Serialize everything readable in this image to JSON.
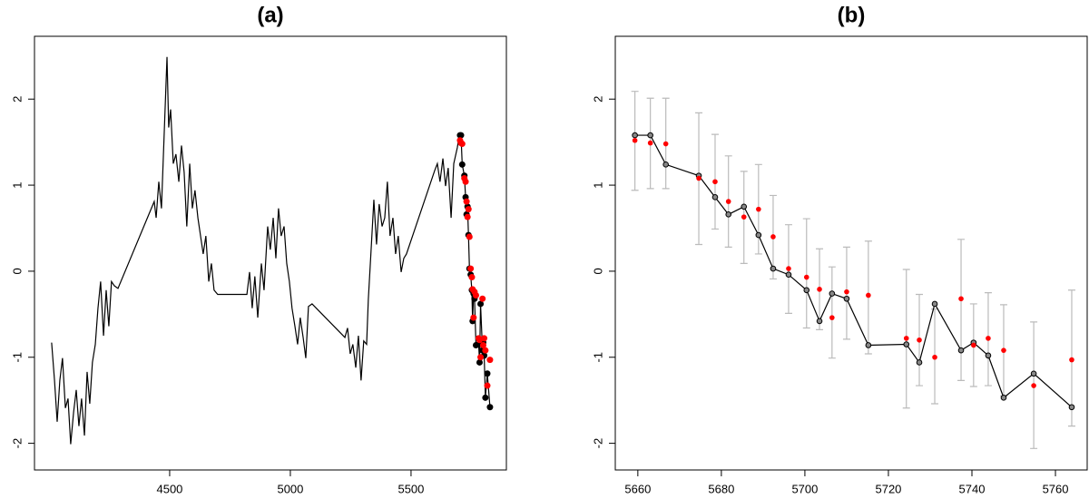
{
  "chart_data": [
    {
      "type": "line",
      "title": "(a)",
      "color": "#000000",
      "predicted_color": "#ff0000",
      "xlim": [
        3940,
        5895
      ],
      "ylim": [
        -2.31,
        2.73
      ],
      "xticks": [
        4500,
        5000,
        5500
      ],
      "yticks": [
        -2,
        -1,
        0,
        1,
        2
      ],
      "x": [
        4011,
        4023,
        4034,
        4045,
        4056,
        4068,
        4079,
        4090,
        4102,
        4113,
        4124,
        4135,
        4147,
        4158,
        4169,
        4180,
        4192,
        4203,
        4214,
        4226,
        4237,
        4248,
        4259,
        4271,
        4286,
        4436,
        4444,
        4455,
        4466,
        4477,
        4489,
        4496,
        4504,
        4515,
        4526,
        4538,
        4549,
        4560,
        4571,
        4583,
        4594,
        4605,
        4617,
        4628,
        4639,
        4650,
        4662,
        4673,
        4684,
        4699,
        4820,
        4831,
        4842,
        4853,
        4865,
        4880,
        4891,
        4906,
        4917,
        4929,
        4940,
        4951,
        4962,
        4974,
        4985,
        4996,
        5007,
        5019,
        5030,
        5041,
        5053,
        5064,
        5075,
        5090,
        5226,
        5237,
        5248,
        5259,
        5271,
        5282,
        5293,
        5304,
        5316,
        5323,
        5334,
        5346,
        5357,
        5368,
        5380,
        5391,
        5402,
        5413,
        5425,
        5436,
        5447,
        5459,
        5470,
        5481,
        5598,
        5609,
        5620,
        5632,
        5643,
        5654,
        5666,
        5677,
        5692,
        5699
      ],
      "values": [
        -0.83,
        -1.27,
        -1.75,
        -1.27,
        -1.01,
        -1.59,
        -1.48,
        -2.01,
        -1.64,
        -1.38,
        -1.8,
        -1.48,
        -1.91,
        -1.17,
        -1.54,
        -1.06,
        -0.85,
        -0.43,
        -0.12,
        -0.75,
        -0.22,
        -0.64,
        -0.12,
        -0.17,
        -0.2,
        0.81,
        0.62,
        1.04,
        0.73,
        1.57,
        2.49,
        1.67,
        1.88,
        1.25,
        1.36,
        1.04,
        1.46,
        1.15,
        0.52,
        1.25,
        0.73,
        0.94,
        0.62,
        0.41,
        0.2,
        0.41,
        -0.12,
        0.09,
        -0.22,
        -0.27,
        -0.27,
        -0.01,
        -0.43,
        -0.06,
        -0.54,
        0.09,
        -0.22,
        0.52,
        0.25,
        0.62,
        0.15,
        0.73,
        0.41,
        0.52,
        0.09,
        -0.12,
        -0.43,
        -0.64,
        -0.85,
        -0.54,
        -0.77,
        -1.01,
        -0.41,
        -0.38,
        -0.77,
        -0.66,
        -0.96,
        -0.85,
        -1.12,
        -0.75,
        -1.27,
        -0.81,
        -0.85,
        -0.33,
        0.22,
        0.83,
        0.31,
        0.78,
        0.52,
        0.62,
        1.04,
        0.41,
        0.62,
        0.2,
        0.41,
        -0.01,
        0.15,
        0.2,
        1.17,
        1.25,
        1.04,
        1.31,
        0.99,
        1.2,
        0.62,
        1.25,
        1.44,
        1.57
      ],
      "observed": {
        "x": [
          5703,
          5707,
          5712,
          5721,
          5726,
          5730,
          5734,
          5738,
          5742,
          5747,
          5752,
          5755,
          5759,
          5763,
          5769,
          5780,
          5784,
          5788,
          5796,
          5799,
          5803,
          5808,
          5816,
          5827
        ],
        "values": [
          1.58,
          1.58,
          1.24,
          1.11,
          0.86,
          0.66,
          0.75,
          0.42,
          0.03,
          -0.04,
          -0.22,
          -0.58,
          -0.26,
          -0.32,
          -0.86,
          -0.85,
          -1.06,
          -0.38,
          -0.92,
          -0.83,
          -0.98,
          -1.47,
          -1.19,
          -1.58
        ]
      },
      "predicted": {
        "values": [
          1.52,
          1.49,
          1.48,
          1.08,
          1.04,
          0.81,
          0.63,
          0.72,
          0.4,
          0.03,
          -0.07,
          -0.21,
          -0.54,
          -0.24,
          -0.28,
          -0.78,
          -0.8,
          -1.0,
          -0.32,
          -0.86,
          -0.78,
          -0.92,
          -1.33,
          -1.03
        ]
      }
    },
    {
      "type": "line",
      "title": "(b)",
      "color": "#000000",
      "predicted_color": "#ff0000",
      "error_color": "#bbbbbb",
      "xlim": [
        5654.6,
        5767.6
      ],
      "ylim": [
        -2.31,
        2.73
      ],
      "xticks": [
        5660,
        5680,
        5700,
        5720,
        5740,
        5760
      ],
      "yticks": [
        -2,
        -1,
        0,
        1,
        2
      ],
      "observed": {
        "x": [
          5659.3,
          5663,
          5666.7,
          5674.6,
          5678.5,
          5681.7,
          5685.4,
          5688.9,
          5692.4,
          5696.1,
          5700.4,
          5703.5,
          5706.5,
          5710,
          5715.2,
          5724.3,
          5727.4,
          5731.1,
          5737.4,
          5740.4,
          5743.9,
          5747.6,
          5754.8,
          5763.9
        ],
        "values": [
          1.58,
          1.58,
          1.24,
          1.11,
          0.86,
          0.66,
          0.75,
          0.42,
          0.03,
          -0.04,
          -0.22,
          -0.58,
          -0.26,
          -0.32,
          -0.86,
          -0.85,
          -1.06,
          -0.38,
          -0.92,
          -0.83,
          -0.98,
          -1.47,
          -1.19,
          -1.58
        ]
      },
      "predicted": {
        "values": [
          1.52,
          1.49,
          1.48,
          1.08,
          1.04,
          0.81,
          0.63,
          0.72,
          0.4,
          0.03,
          -0.07,
          -0.21,
          -0.54,
          -0.24,
          -0.28,
          -0.78,
          -0.8,
          -1.0,
          -0.32,
          -0.86,
          -0.78,
          -0.92,
          -1.33,
          -1.03
        ],
        "lower": [
          0.94,
          0.96,
          0.96,
          0.31,
          0.49,
          0.28,
          0.09,
          0.2,
          -0.09,
          -0.49,
          -0.66,
          -0.68,
          -1.01,
          -0.79,
          -0.96,
          -1.59,
          -1.33,
          -1.54,
          -1.27,
          -1.34,
          -1.33,
          -1.45,
          -2.06,
          -1.8
        ],
        "upper": [
          2.09,
          2.01,
          2.01,
          1.84,
          1.59,
          1.34,
          1.16,
          1.24,
          0.88,
          0.54,
          0.61,
          0.26,
          0.05,
          0.28,
          0.35,
          0.02,
          -0.27,
          -0.44,
          0.37,
          -0.38,
          -0.25,
          -0.39,
          -0.59,
          -0.22
        ]
      }
    }
  ]
}
